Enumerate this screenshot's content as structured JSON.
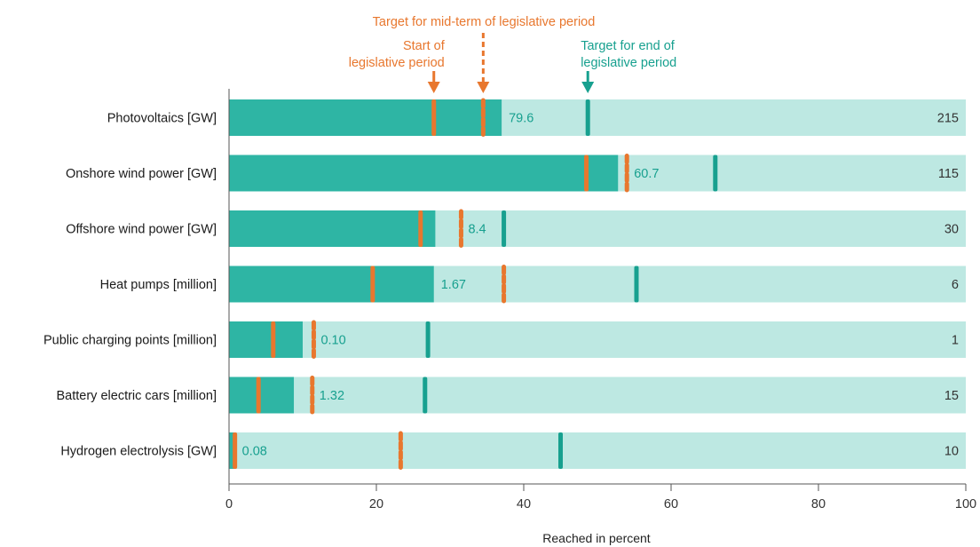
{
  "chart_data": {
    "type": "bar",
    "orientation": "horizontal",
    "categories": [
      "Photovoltaics [GW]",
      "Onshore wind power [GW]",
      "Offshore wind power [GW]",
      "Heat pumps [million]",
      "Public charging points [million]",
      "Battery electric cars [million]",
      "Hydrogen electrolysis [GW]"
    ],
    "reached_percent": [
      37.0,
      52.8,
      28.0,
      27.8,
      10.0,
      8.8,
      0.8
    ],
    "reached_labels": [
      "79.6",
      "60.7",
      "8.4",
      "1.67",
      "0.10",
      "1.32",
      "0.08"
    ],
    "target_values": [
      "215",
      "115",
      "30",
      "6",
      "1",
      "15",
      "10"
    ],
    "start_of_period_percent": [
      27.8,
      48.5,
      26.0,
      19.5,
      6.0,
      4.0,
      0.8
    ],
    "midterm_target_percent": [
      34.5,
      54.0,
      31.5,
      37.3,
      11.5,
      11.3,
      23.3
    ],
    "end_target_percent": [
      48.7,
      66.0,
      37.3,
      55.3,
      27.0,
      26.6,
      45.0
    ],
    "xlim": [
      0,
      100
    ],
    "xticks": [
      "0",
      "20",
      "40",
      "60",
      "80",
      "100"
    ],
    "xlabel": "Reached in percent",
    "annotations": {
      "start": [
        "Start of",
        "legislative period"
      ],
      "midterm": [
        "Target for mid-term of legislative period"
      ],
      "end": [
        "Target for end of",
        "legislative period"
      ]
    },
    "annotation_positions_percent": {
      "start": 27.8,
      "midterm": 34.5,
      "end": 48.7
    },
    "colors": {
      "reached": "#2eb5a4",
      "remaining": "#bde8e2",
      "start_marker": "#e8772e",
      "midterm_marker": "#e8772e",
      "end_marker": "#17a08f",
      "value_text": "#17a08f",
      "annot_orange": "#e8772e",
      "annot_teal": "#17a08f"
    }
  }
}
